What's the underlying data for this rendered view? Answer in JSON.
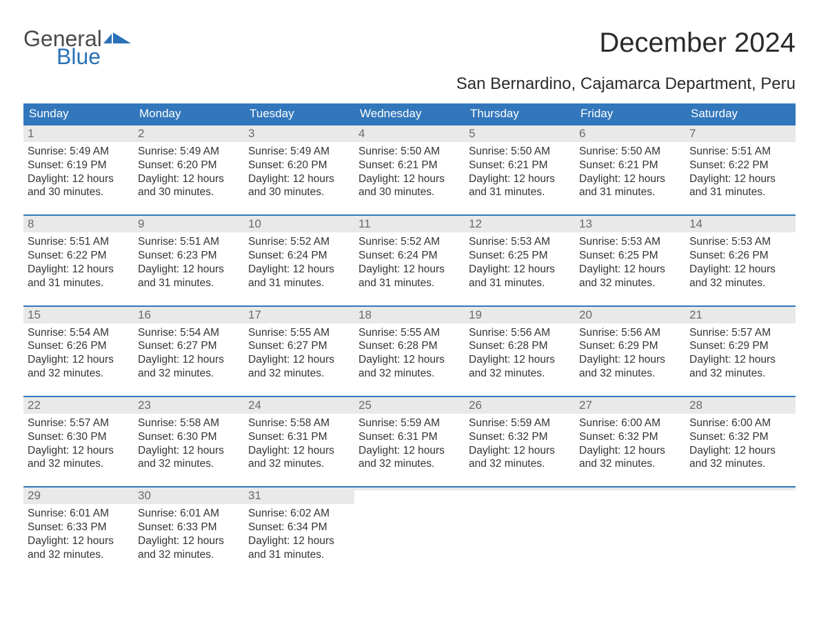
{
  "brand": {
    "word1": "General",
    "word2": "Blue",
    "word1_color": "#4a4a4a",
    "word2_color": "#2a71b8",
    "flag_color": "#2a71b8"
  },
  "title": "December 2024",
  "location": "San Bernardino, Cajamarca Department, Peru",
  "colors": {
    "header_bg": "#3277bb",
    "header_text": "#ffffff",
    "daynum_bg": "#e9e9e9",
    "daynum_text": "#6a6a6a",
    "body_text": "#333333",
    "week_border": "#3277bb",
    "page_bg": "#ffffff"
  },
  "typography": {
    "title_fontsize": 40,
    "location_fontsize": 24,
    "header_fontsize": 17,
    "daynum_fontsize": 17,
    "body_fontsize": 15.5
  },
  "day_headers": [
    "Sunday",
    "Monday",
    "Tuesday",
    "Wednesday",
    "Thursday",
    "Friday",
    "Saturday"
  ],
  "weeks": [
    [
      {
        "n": "1",
        "sunrise": "Sunrise: 5:49 AM",
        "sunset": "Sunset: 6:19 PM",
        "day1": "Daylight: 12 hours",
        "day2": "and 30 minutes."
      },
      {
        "n": "2",
        "sunrise": "Sunrise: 5:49 AM",
        "sunset": "Sunset: 6:20 PM",
        "day1": "Daylight: 12 hours",
        "day2": "and 30 minutes."
      },
      {
        "n": "3",
        "sunrise": "Sunrise: 5:49 AM",
        "sunset": "Sunset: 6:20 PM",
        "day1": "Daylight: 12 hours",
        "day2": "and 30 minutes."
      },
      {
        "n": "4",
        "sunrise": "Sunrise: 5:50 AM",
        "sunset": "Sunset: 6:21 PM",
        "day1": "Daylight: 12 hours",
        "day2": "and 30 minutes."
      },
      {
        "n": "5",
        "sunrise": "Sunrise: 5:50 AM",
        "sunset": "Sunset: 6:21 PM",
        "day1": "Daylight: 12 hours",
        "day2": "and 31 minutes."
      },
      {
        "n": "6",
        "sunrise": "Sunrise: 5:50 AM",
        "sunset": "Sunset: 6:21 PM",
        "day1": "Daylight: 12 hours",
        "day2": "and 31 minutes."
      },
      {
        "n": "7",
        "sunrise": "Sunrise: 5:51 AM",
        "sunset": "Sunset: 6:22 PM",
        "day1": "Daylight: 12 hours",
        "day2": "and 31 minutes."
      }
    ],
    [
      {
        "n": "8",
        "sunrise": "Sunrise: 5:51 AM",
        "sunset": "Sunset: 6:22 PM",
        "day1": "Daylight: 12 hours",
        "day2": "and 31 minutes."
      },
      {
        "n": "9",
        "sunrise": "Sunrise: 5:51 AM",
        "sunset": "Sunset: 6:23 PM",
        "day1": "Daylight: 12 hours",
        "day2": "and 31 minutes."
      },
      {
        "n": "10",
        "sunrise": "Sunrise: 5:52 AM",
        "sunset": "Sunset: 6:24 PM",
        "day1": "Daylight: 12 hours",
        "day2": "and 31 minutes."
      },
      {
        "n": "11",
        "sunrise": "Sunrise: 5:52 AM",
        "sunset": "Sunset: 6:24 PM",
        "day1": "Daylight: 12 hours",
        "day2": "and 31 minutes."
      },
      {
        "n": "12",
        "sunrise": "Sunrise: 5:53 AM",
        "sunset": "Sunset: 6:25 PM",
        "day1": "Daylight: 12 hours",
        "day2": "and 31 minutes."
      },
      {
        "n": "13",
        "sunrise": "Sunrise: 5:53 AM",
        "sunset": "Sunset: 6:25 PM",
        "day1": "Daylight: 12 hours",
        "day2": "and 32 minutes."
      },
      {
        "n": "14",
        "sunrise": "Sunrise: 5:53 AM",
        "sunset": "Sunset: 6:26 PM",
        "day1": "Daylight: 12 hours",
        "day2": "and 32 minutes."
      }
    ],
    [
      {
        "n": "15",
        "sunrise": "Sunrise: 5:54 AM",
        "sunset": "Sunset: 6:26 PM",
        "day1": "Daylight: 12 hours",
        "day2": "and 32 minutes."
      },
      {
        "n": "16",
        "sunrise": "Sunrise: 5:54 AM",
        "sunset": "Sunset: 6:27 PM",
        "day1": "Daylight: 12 hours",
        "day2": "and 32 minutes."
      },
      {
        "n": "17",
        "sunrise": "Sunrise: 5:55 AM",
        "sunset": "Sunset: 6:27 PM",
        "day1": "Daylight: 12 hours",
        "day2": "and 32 minutes."
      },
      {
        "n": "18",
        "sunrise": "Sunrise: 5:55 AM",
        "sunset": "Sunset: 6:28 PM",
        "day1": "Daylight: 12 hours",
        "day2": "and 32 minutes."
      },
      {
        "n": "19",
        "sunrise": "Sunrise: 5:56 AM",
        "sunset": "Sunset: 6:28 PM",
        "day1": "Daylight: 12 hours",
        "day2": "and 32 minutes."
      },
      {
        "n": "20",
        "sunrise": "Sunrise: 5:56 AM",
        "sunset": "Sunset: 6:29 PM",
        "day1": "Daylight: 12 hours",
        "day2": "and 32 minutes."
      },
      {
        "n": "21",
        "sunrise": "Sunrise: 5:57 AM",
        "sunset": "Sunset: 6:29 PM",
        "day1": "Daylight: 12 hours",
        "day2": "and 32 minutes."
      }
    ],
    [
      {
        "n": "22",
        "sunrise": "Sunrise: 5:57 AM",
        "sunset": "Sunset: 6:30 PM",
        "day1": "Daylight: 12 hours",
        "day2": "and 32 minutes."
      },
      {
        "n": "23",
        "sunrise": "Sunrise: 5:58 AM",
        "sunset": "Sunset: 6:30 PM",
        "day1": "Daylight: 12 hours",
        "day2": "and 32 minutes."
      },
      {
        "n": "24",
        "sunrise": "Sunrise: 5:58 AM",
        "sunset": "Sunset: 6:31 PM",
        "day1": "Daylight: 12 hours",
        "day2": "and 32 minutes."
      },
      {
        "n": "25",
        "sunrise": "Sunrise: 5:59 AM",
        "sunset": "Sunset: 6:31 PM",
        "day1": "Daylight: 12 hours",
        "day2": "and 32 minutes."
      },
      {
        "n": "26",
        "sunrise": "Sunrise: 5:59 AM",
        "sunset": "Sunset: 6:32 PM",
        "day1": "Daylight: 12 hours",
        "day2": "and 32 minutes."
      },
      {
        "n": "27",
        "sunrise": "Sunrise: 6:00 AM",
        "sunset": "Sunset: 6:32 PM",
        "day1": "Daylight: 12 hours",
        "day2": "and 32 minutes."
      },
      {
        "n": "28",
        "sunrise": "Sunrise: 6:00 AM",
        "sunset": "Sunset: 6:32 PM",
        "day1": "Daylight: 12 hours",
        "day2": "and 32 minutes."
      }
    ],
    [
      {
        "n": "29",
        "sunrise": "Sunrise: 6:01 AM",
        "sunset": "Sunset: 6:33 PM",
        "day1": "Daylight: 12 hours",
        "day2": "and 32 minutes."
      },
      {
        "n": "30",
        "sunrise": "Sunrise: 6:01 AM",
        "sunset": "Sunset: 6:33 PM",
        "day1": "Daylight: 12 hours",
        "day2": "and 32 minutes."
      },
      {
        "n": "31",
        "sunrise": "Sunrise: 6:02 AM",
        "sunset": "Sunset: 6:34 PM",
        "day1": "Daylight: 12 hours",
        "day2": "and 31 minutes."
      },
      {
        "empty": true
      },
      {
        "empty": true
      },
      {
        "empty": true
      },
      {
        "empty": true
      }
    ]
  ]
}
